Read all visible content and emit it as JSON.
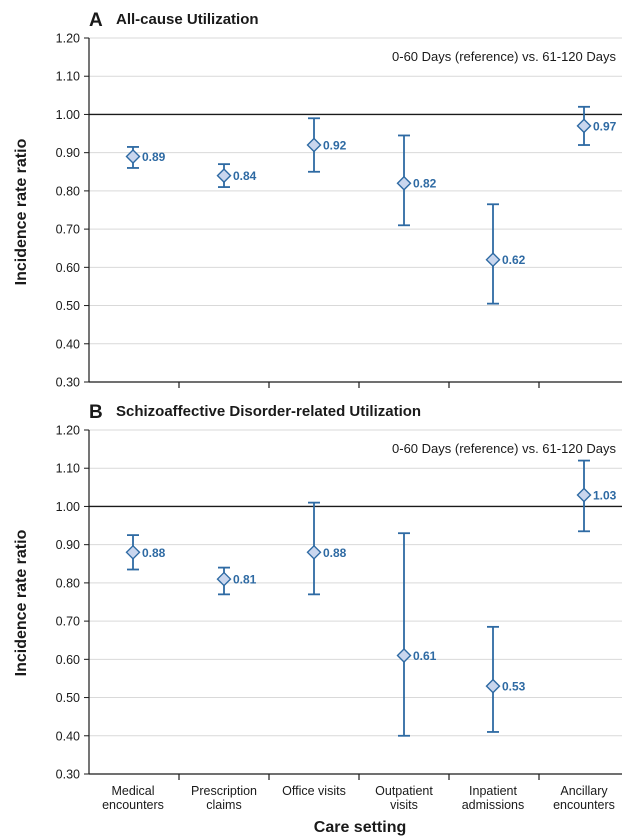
{
  "colors": {
    "series": "#2e6aa3",
    "marker_fill": "#c9d6ee",
    "label": "#2e6aa3",
    "axis": "#1a1a1a",
    "grid": "#d9d9d9",
    "reference_line": "#1a1a1a"
  },
  "xlabel": "Care setting",
  "categories": [
    [
      "Medical",
      "encounters"
    ],
    [
      "Prescription",
      "claims"
    ],
    [
      "Office visits"
    ],
    [
      "Outpatient",
      "visits"
    ],
    [
      "Inpatient",
      "admissions"
    ],
    [
      "Ancillary",
      "encounters"
    ]
  ],
  "chart_data": [
    {
      "type": "scatter",
      "panel_letter": "A",
      "title": "All-cause Utilization",
      "annotation": "0-60 Days (reference) vs. 61-120 Days",
      "ylabel": "Incidence rate ratio",
      "ylim": [
        0.3,
        1.2
      ],
      "yticks": [
        "0.30",
        "0.40",
        "0.50",
        "0.60",
        "0.70",
        "0.80",
        "0.90",
        "1.00",
        "1.10",
        "1.20"
      ],
      "reference_line": 1.0,
      "grid": true,
      "points": [
        {
          "value": 0.89,
          "label": "0.89",
          "lower": 0.86,
          "upper": 0.915
        },
        {
          "value": 0.84,
          "label": "0.84",
          "lower": 0.81,
          "upper": 0.87
        },
        {
          "value": 0.92,
          "label": "0.92",
          "lower": 0.85,
          "upper": 0.99
        },
        {
          "value": 0.82,
          "label": "0.82",
          "lower": 0.71,
          "upper": 0.945
        },
        {
          "value": 0.62,
          "label": "0.62",
          "lower": 0.505,
          "upper": 0.765
        },
        {
          "value": 0.97,
          "label": "0.97",
          "lower": 0.92,
          "upper": 1.02
        }
      ]
    },
    {
      "type": "scatter",
      "panel_letter": "B",
      "title": "Schizoaffective Disorder-related Utilization",
      "annotation": "0-60 Days (reference) vs. 61-120 Days",
      "ylabel": "Incidence rate ratio",
      "ylim": [
        0.3,
        1.2
      ],
      "yticks": [
        "0.30",
        "0.40",
        "0.50",
        "0.60",
        "0.70",
        "0.80",
        "0.90",
        "1.00",
        "1.10",
        "1.20"
      ],
      "reference_line": 1.0,
      "grid": true,
      "points": [
        {
          "value": 0.88,
          "label": "0.88",
          "lower": 0.835,
          "upper": 0.925
        },
        {
          "value": 0.81,
          "label": "0.81",
          "lower": 0.77,
          "upper": 0.84
        },
        {
          "value": 0.88,
          "label": "0.88",
          "lower": 0.77,
          "upper": 1.01
        },
        {
          "value": 0.61,
          "label": "0.61",
          "lower": 0.4,
          "upper": 0.93
        },
        {
          "value": 0.53,
          "label": "0.53",
          "lower": 0.41,
          "upper": 0.685
        },
        {
          "value": 1.03,
          "label": "1.03",
          "lower": 0.935,
          "upper": 1.12
        }
      ]
    }
  ]
}
